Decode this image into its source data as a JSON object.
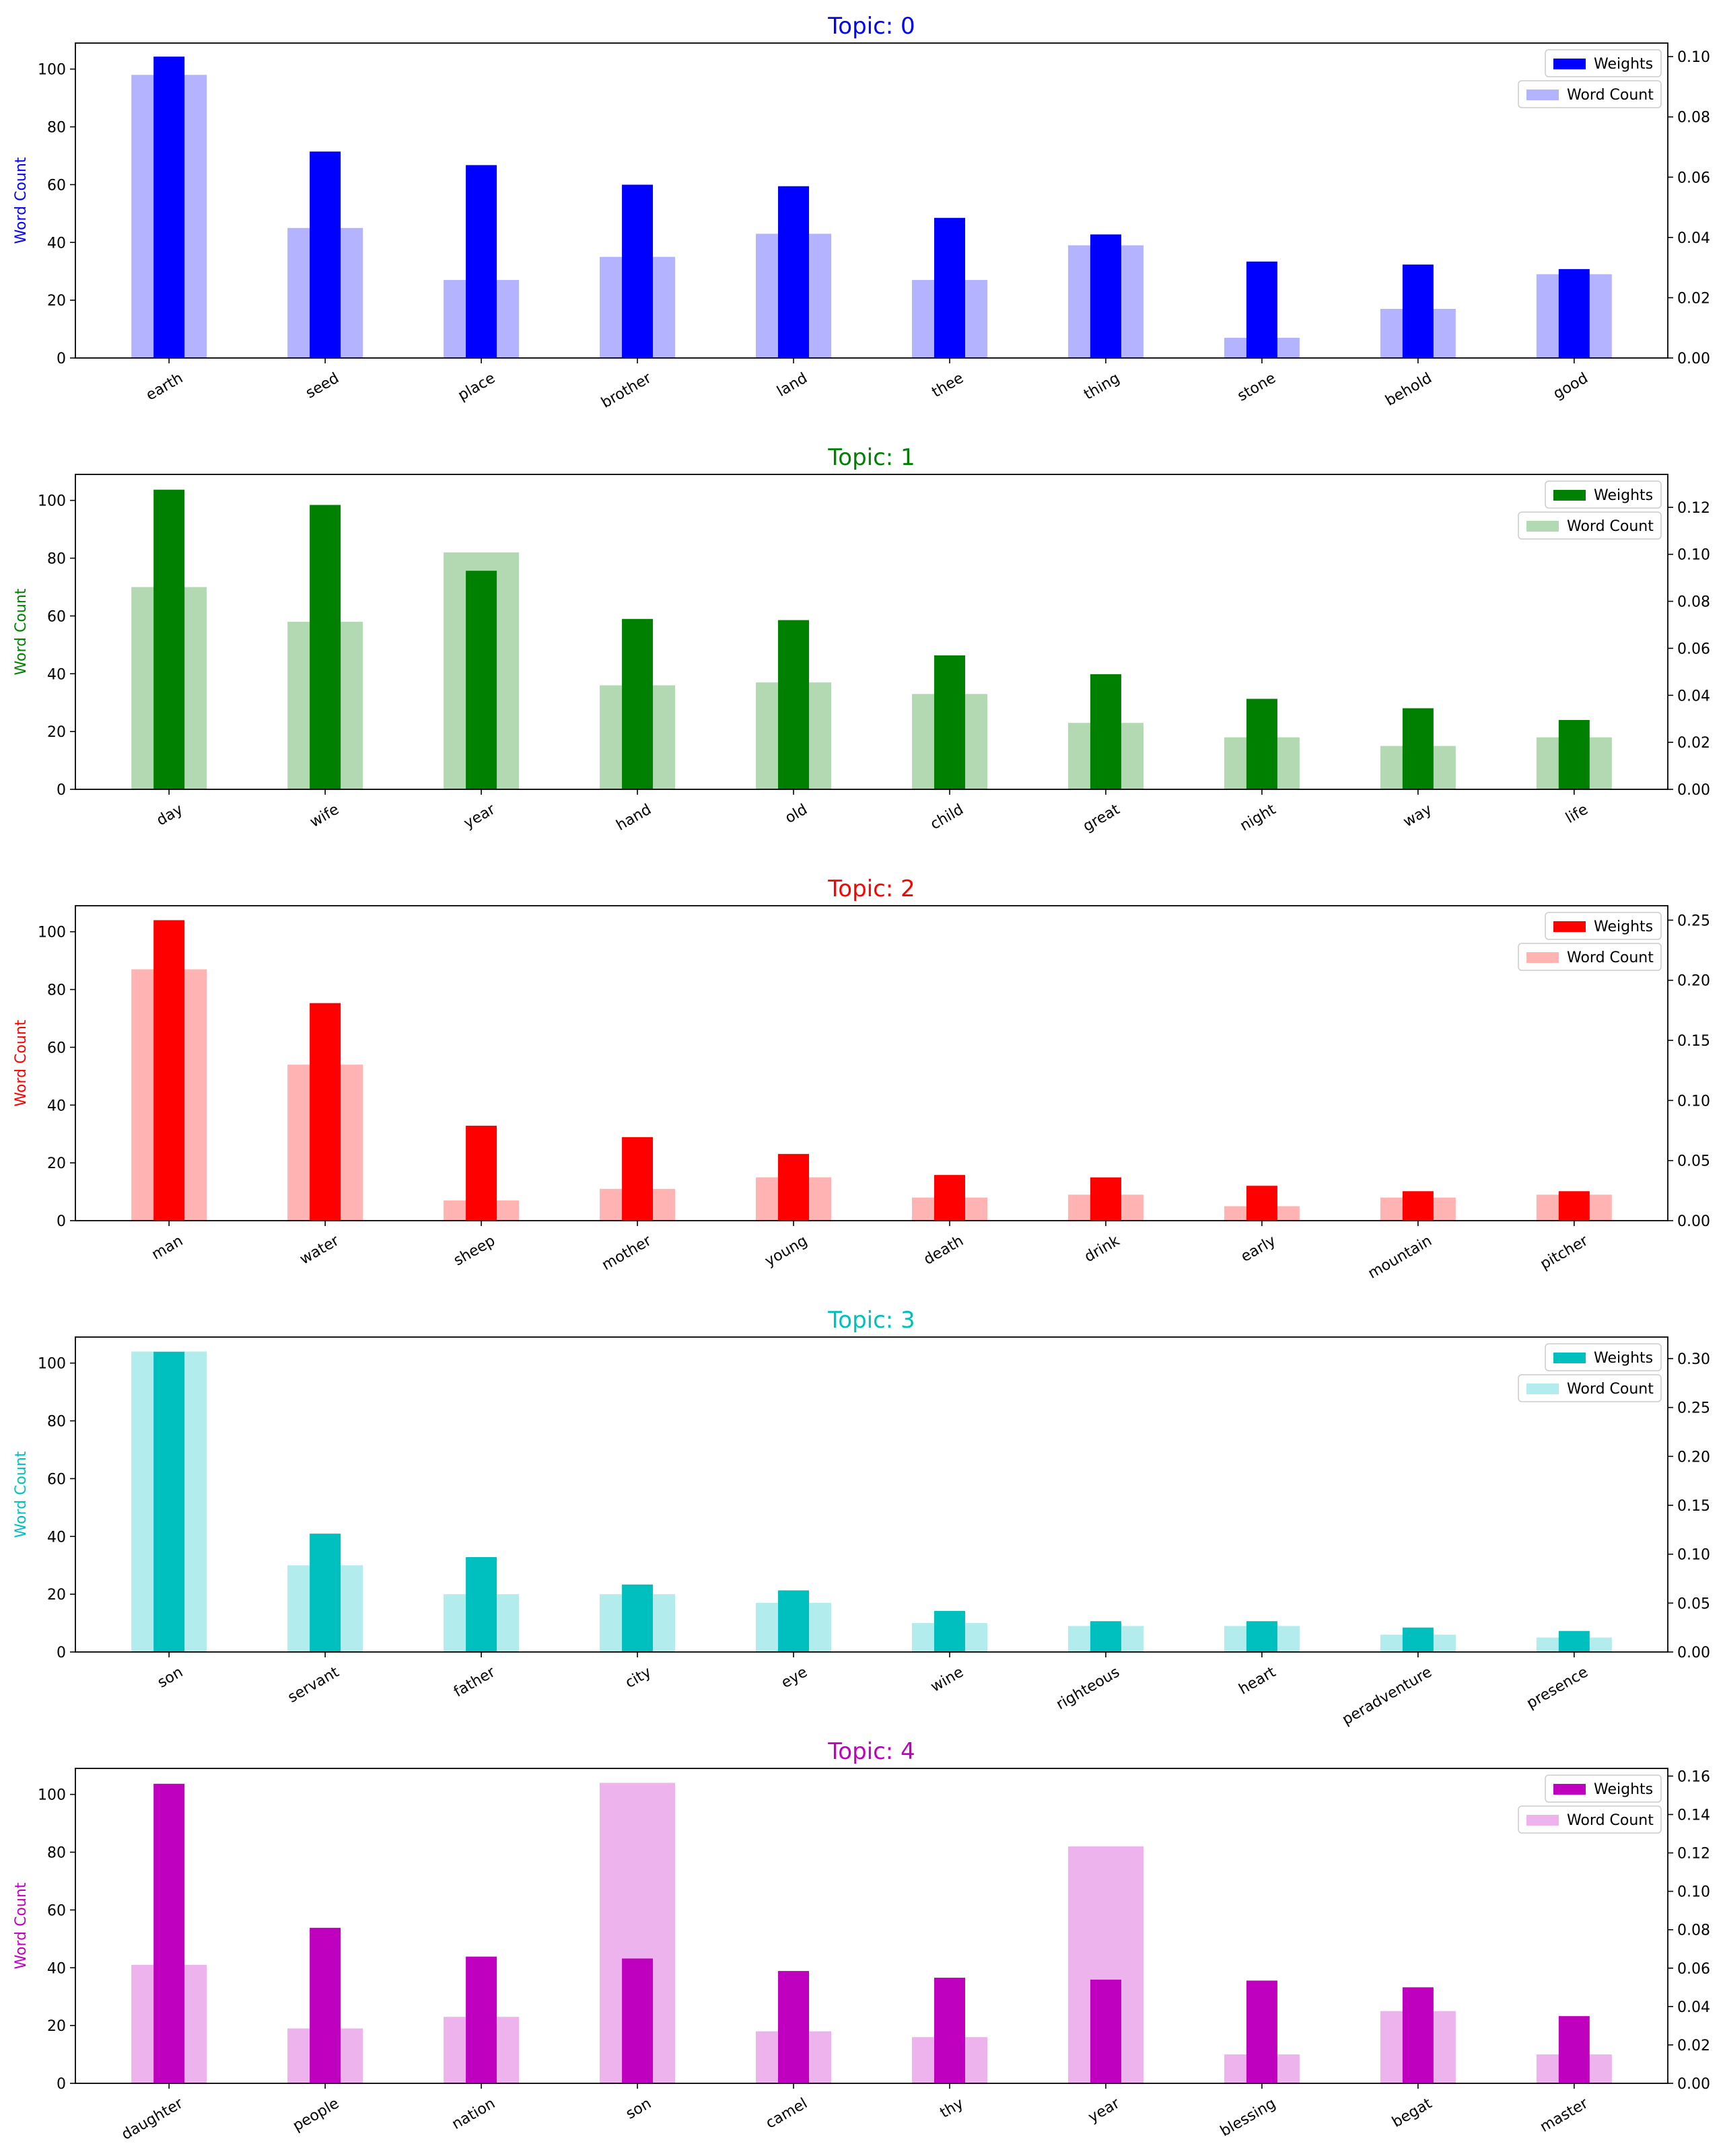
{
  "chart_data": [
    {
      "type": "bar",
      "title": "Topic: 0",
      "color": "#0000ff",
      "light_color": "#b3b3ff",
      "ylabel": "Word Count",
      "ylim": [
        0,
        109
      ],
      "y2lim": [
        0,
        0.1045
      ],
      "yticks": [
        0,
        20,
        40,
        60,
        80,
        100
      ],
      "y2ticks": [
        "0.00",
        "0.02",
        "0.04",
        "0.06",
        "0.08",
        "0.10"
      ],
      "legend_position": "top-right",
      "categories": [
        "earth",
        "seed",
        "place",
        "brother",
        "land",
        "thee",
        "thing",
        "stone",
        "behold",
        "good"
      ],
      "series": [
        {
          "name": "Weights",
          "values": [
            0.1,
            0.0685,
            0.064,
            0.0575,
            0.057,
            0.0465,
            0.041,
            0.032,
            0.031,
            0.0295
          ]
        },
        {
          "name": "Word Count",
          "values": [
            98,
            45,
            27,
            35,
            43,
            27,
            39,
            7,
            17,
            29
          ]
        }
      ]
    },
    {
      "type": "bar",
      "title": "Topic: 1",
      "color": "#008000",
      "light_color": "#b3d9b3",
      "ylabel": "Word Count",
      "ylim": [
        0,
        109
      ],
      "y2lim": [
        0,
        0.134
      ],
      "yticks": [
        0,
        20,
        40,
        60,
        80,
        100
      ],
      "y2ticks": [
        "0.00",
        "0.02",
        "0.04",
        "0.06",
        "0.08",
        "0.10",
        "0.12"
      ],
      "legend_position": "top-right",
      "categories": [
        "day",
        "wife",
        "year",
        "hand",
        "old",
        "child",
        "great",
        "night",
        "way",
        "life"
      ],
      "series": [
        {
          "name": "Weights",
          "values": [
            0.1275,
            0.121,
            0.093,
            0.0725,
            0.072,
            0.057,
            0.049,
            0.0385,
            0.0345,
            0.0295
          ]
        },
        {
          "name": "Word Count",
          "values": [
            70,
            58,
            82,
            36,
            37,
            33,
            23,
            18,
            15,
            18
          ]
        }
      ]
    },
    {
      "type": "bar",
      "title": "Topic: 2",
      "color": "#ff0000",
      "light_color": "#ffb3b3",
      "ylabel": "Word Count",
      "ylim": [
        0,
        109
      ],
      "y2lim": [
        0,
        0.262
      ],
      "yticks": [
        0,
        20,
        40,
        60,
        80,
        100
      ],
      "y2ticks": [
        "0.00",
        "0.05",
        "0.10",
        "0.15",
        "0.20",
        "0.25"
      ],
      "legend_position": "top-right",
      "categories": [
        "man",
        "water",
        "sheep",
        "mother",
        "young",
        "death",
        "drink",
        "early",
        "mountain",
        "pitcher"
      ],
      "series": [
        {
          "name": "Weights",
          "values": [
            0.25,
            0.181,
            0.079,
            0.0695,
            0.0555,
            0.038,
            0.036,
            0.029,
            0.0245,
            0.0245
          ]
        },
        {
          "name": "Word Count",
          "values": [
            87,
            54,
            7,
            11,
            15,
            8,
            9,
            5,
            8,
            9
          ]
        }
      ]
    },
    {
      "type": "bar",
      "title": "Topic: 3",
      "color": "#00bfbf",
      "light_color": "#b3ecec",
      "ylabel": "Word Count",
      "ylim": [
        0,
        109
      ],
      "y2lim": [
        0,
        0.322
      ],
      "yticks": [
        0,
        20,
        40,
        60,
        80,
        100
      ],
      "y2ticks": [
        "0.00",
        "0.05",
        "0.10",
        "0.15",
        "0.20",
        "0.25",
        "0.30"
      ],
      "legend_position": "top-right",
      "categories": [
        "son",
        "servant",
        "father",
        "city",
        "eye",
        "wine",
        "righteous",
        "heart",
        "peradventure",
        "presence"
      ],
      "series": [
        {
          "name": "Weights",
          "values": [
            0.307,
            0.121,
            0.097,
            0.069,
            0.063,
            0.042,
            0.0315,
            0.0315,
            0.025,
            0.0215
          ]
        },
        {
          "name": "Word Count",
          "values": [
            104,
            30,
            20,
            20,
            17,
            10,
            9,
            9,
            6,
            5
          ]
        }
      ]
    },
    {
      "type": "bar",
      "title": "Topic: 4",
      "color": "#bf00bf",
      "light_color": "#ecb3ec",
      "ylabel": "Word Count",
      "ylim": [
        0,
        109
      ],
      "y2lim": [
        0,
        0.164
      ],
      "yticks": [
        0,
        20,
        40,
        60,
        80,
        100
      ],
      "y2ticks": [
        "0.00",
        "0.02",
        "0.04",
        "0.06",
        "0.08",
        "0.10",
        "0.12",
        "0.14",
        "0.16"
      ],
      "legend_position": "top-right",
      "categories": [
        "daughter",
        "people",
        "nation",
        "son",
        "camel",
        "thy",
        "year",
        "blessing",
        "begat",
        "master"
      ],
      "series": [
        {
          "name": "Weights",
          "values": [
            0.156,
            0.081,
            0.066,
            0.065,
            0.0585,
            0.055,
            0.054,
            0.0535,
            0.05,
            0.035
          ]
        },
        {
          "name": "Word Count",
          "values": [
            41,
            19,
            23,
            104,
            18,
            16,
            82,
            10,
            25,
            10
          ]
        }
      ]
    }
  ]
}
